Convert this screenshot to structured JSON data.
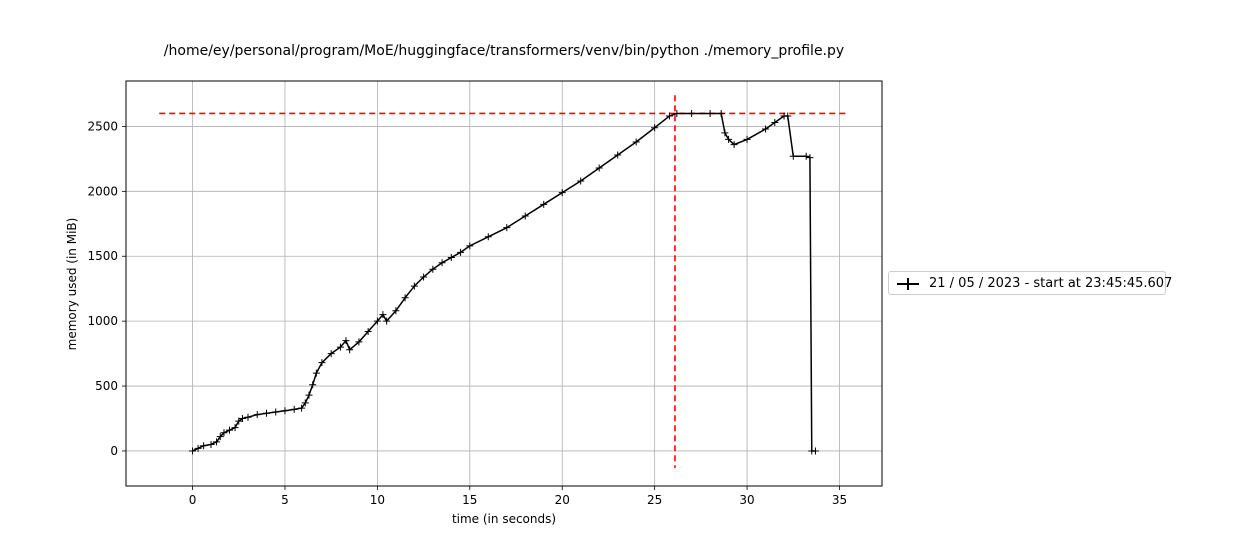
{
  "chart_data": {
    "type": "line",
    "title": "/home/ey/personal/program/MoE/huggingface/transformers/venv/bin/python ./memory_profile.py",
    "xlabel": "time (in seconds)",
    "ylabel": "memory used (in MiB)",
    "xlim": [
      -3.6,
      37.3
    ],
    "ylim": [
      -270,
      2850
    ],
    "xticks": [
      0,
      5,
      10,
      15,
      20,
      25,
      30,
      35
    ],
    "yticks": [
      0,
      500,
      1000,
      1500,
      2000,
      2500
    ],
    "grid": true,
    "legend_position": "right-outside",
    "series": [
      {
        "name": "21 / 05 / 2023 - start at 23:45:45.607",
        "color": "#000000",
        "marker": "+",
        "x": [
          0,
          0.3,
          0.6,
          1.0,
          1.3,
          1.5,
          1.7,
          2.0,
          2.3,
          2.5,
          2.7,
          3.0,
          3.5,
          4.0,
          4.5,
          5.0,
          5.5,
          5.9,
          6.1,
          6.3,
          6.5,
          6.7,
          7.0,
          7.5,
          8.0,
          8.3,
          8.5,
          9.0,
          9.5,
          10.0,
          10.3,
          10.5,
          11.0,
          11.5,
          12.0,
          12.5,
          13.0,
          13.5,
          14.0,
          14.5,
          15.0,
          16.0,
          17.0,
          18.0,
          19.0,
          20.0,
          21.0,
          22.0,
          23.0,
          24.0,
          25.0,
          25.8,
          26.2,
          27.0,
          28.0,
          28.6,
          28.8,
          29.0,
          29.3,
          30.0,
          31.0,
          31.5,
          32.0,
          32.2,
          32.5,
          33.2,
          33.4,
          33.5,
          33.7
        ],
        "y": [
          0,
          20,
          40,
          50,
          70,
          110,
          140,
          160,
          180,
          230,
          250,
          260,
          280,
          290,
          300,
          310,
          320,
          330,
          370,
          430,
          510,
          600,
          680,
          750,
          800,
          850,
          780,
          840,
          920,
          1000,
          1050,
          1000,
          1080,
          1180,
          1270,
          1340,
          1400,
          1450,
          1490,
          1530,
          1580,
          1650,
          1720,
          1810,
          1900,
          1990,
          2080,
          2180,
          2280,
          2380,
          2490,
          2580,
          2600,
          2600,
          2600,
          2600,
          2450,
          2400,
          2360,
          2400,
          2480,
          2530,
          2580,
          2580,
          2270,
          2270,
          2260,
          0,
          0
        ]
      }
    ],
    "reference_lines": {
      "color": "#ff0000",
      "style": "dashed",
      "horizontal_y": 2600,
      "vertical_x": 26.1
    }
  }
}
